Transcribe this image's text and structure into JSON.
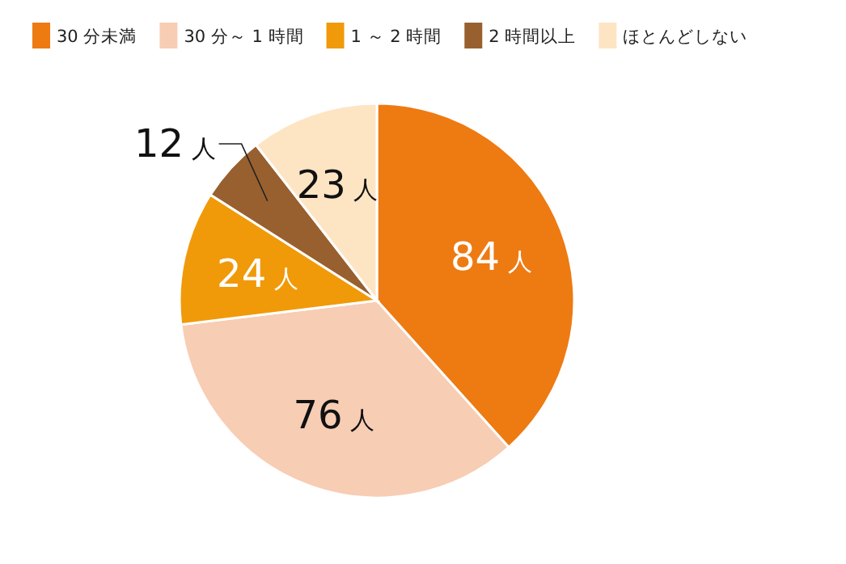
{
  "chart_data": {
    "type": "pie",
    "categories": [
      "30 分未満",
      "30 分～ 1 時間",
      "1 ～ 2 時間",
      "2 時間以上",
      "ほとんどしない"
    ],
    "values": [
      84,
      76,
      24,
      12,
      23
    ],
    "colors": [
      "#ee7a12",
      "#f7cdb4",
      "#f09a0a",
      "#98602f",
      "#fde5c4"
    ],
    "value_labels": [
      "84 人",
      "76 人",
      "24 人",
      "12 人",
      "23 人"
    ],
    "legend": "top"
  }
}
